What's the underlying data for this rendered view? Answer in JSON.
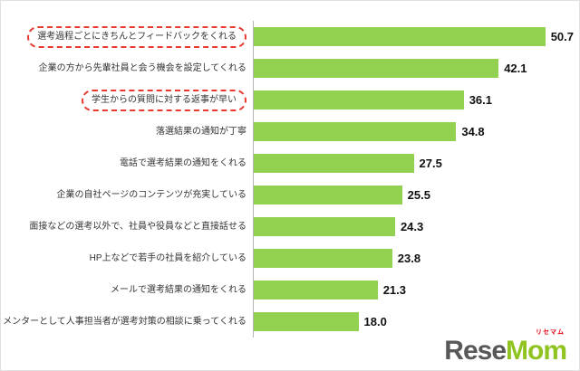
{
  "chart_data": {
    "type": "bar",
    "orientation": "horizontal",
    "title": "",
    "xlabel": "",
    "ylabel": "",
    "xlim": [
      0,
      55
    ],
    "grid": false,
    "bar_color": "#92d050",
    "categories": [
      "選考過程ごとにきちんとフィードバックをくれる",
      "企業の方から先輩社員と会う機会を設定してくれる",
      "学生からの質問に対する返事が早い",
      "落選結果の通知が丁寧",
      "電話で選考結果の通知をくれる",
      "企業の自社ページのコンテンツが充実している",
      "面接などの選考以外で、社員や役員などと直接話せる",
      "HP上などで若手の社員を紹介している",
      "メールで選考結果の通知をくれる",
      "メンターとして人事担当者が選考対策の相談に乗ってくれる"
    ],
    "values": [
      50.7,
      42.1,
      36.1,
      34.8,
      27.5,
      25.5,
      24.3,
      23.8,
      21.3,
      18.0
    ],
    "highlighted_indices": [
      0,
      2
    ],
    "highlight_style": "red-dashed-outline"
  },
  "logo": {
    "text_left": "Rese",
    "text_right": "Mom",
    "ruby": "リセマム"
  }
}
